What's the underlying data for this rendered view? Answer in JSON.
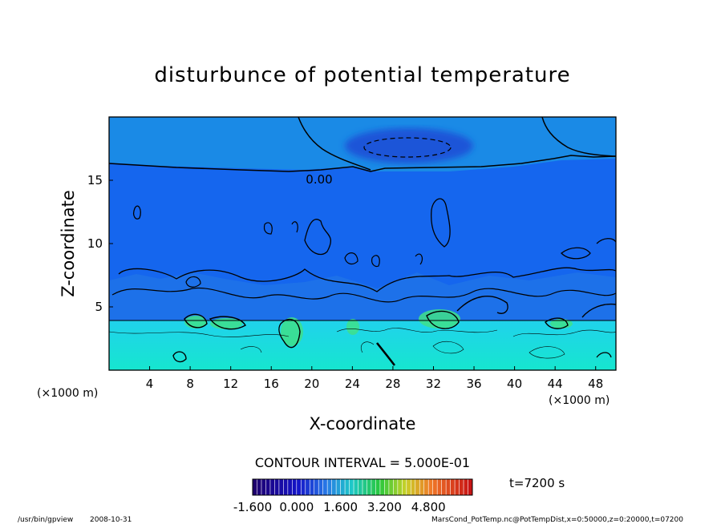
{
  "chart_data": {
    "type": "heatmap",
    "title": "disturbunce of potential temperature",
    "xlabel": "X-coordinate",
    "ylabel": "Z-coordinate",
    "x_unit": "(×1000 m)",
    "y_unit": "(×1000 m)",
    "xlim": [
      0,
      50
    ],
    "ylim": [
      0,
      20
    ],
    "x_ticks": [
      4,
      8,
      12,
      16,
      20,
      24,
      28,
      32,
      36,
      40,
      44,
      48
    ],
    "y_ticks": [
      5,
      10,
      15
    ],
    "contour_interval_text": "CONTOUR INTERVAL = 5.000E-01",
    "contour_label": "0.00",
    "time_label": "t=7200 s",
    "colorbar": {
      "range": [
        -1.6,
        6.4
      ],
      "tick_labels": [
        "-1.600",
        "0.000",
        "1.600",
        "3.200",
        "4.800"
      ],
      "tick_values": [
        -1.6,
        0.0,
        1.6,
        3.2,
        4.8
      ]
    },
    "colors": {
      "upper_layer": "#1a8ae6",
      "mid_layer": "#1566ee",
      "lower_layer": "#19e0d8",
      "warm_pocket": "#3fe08a",
      "cold_core": "#1a55d8"
    }
  },
  "footer": {
    "program": "/usr/bin/gpview",
    "date": "2008-10-31",
    "source": "MarsCond_PotTemp.nc@PotTempDist,x=0:50000,z=0:20000,t=07200"
  }
}
